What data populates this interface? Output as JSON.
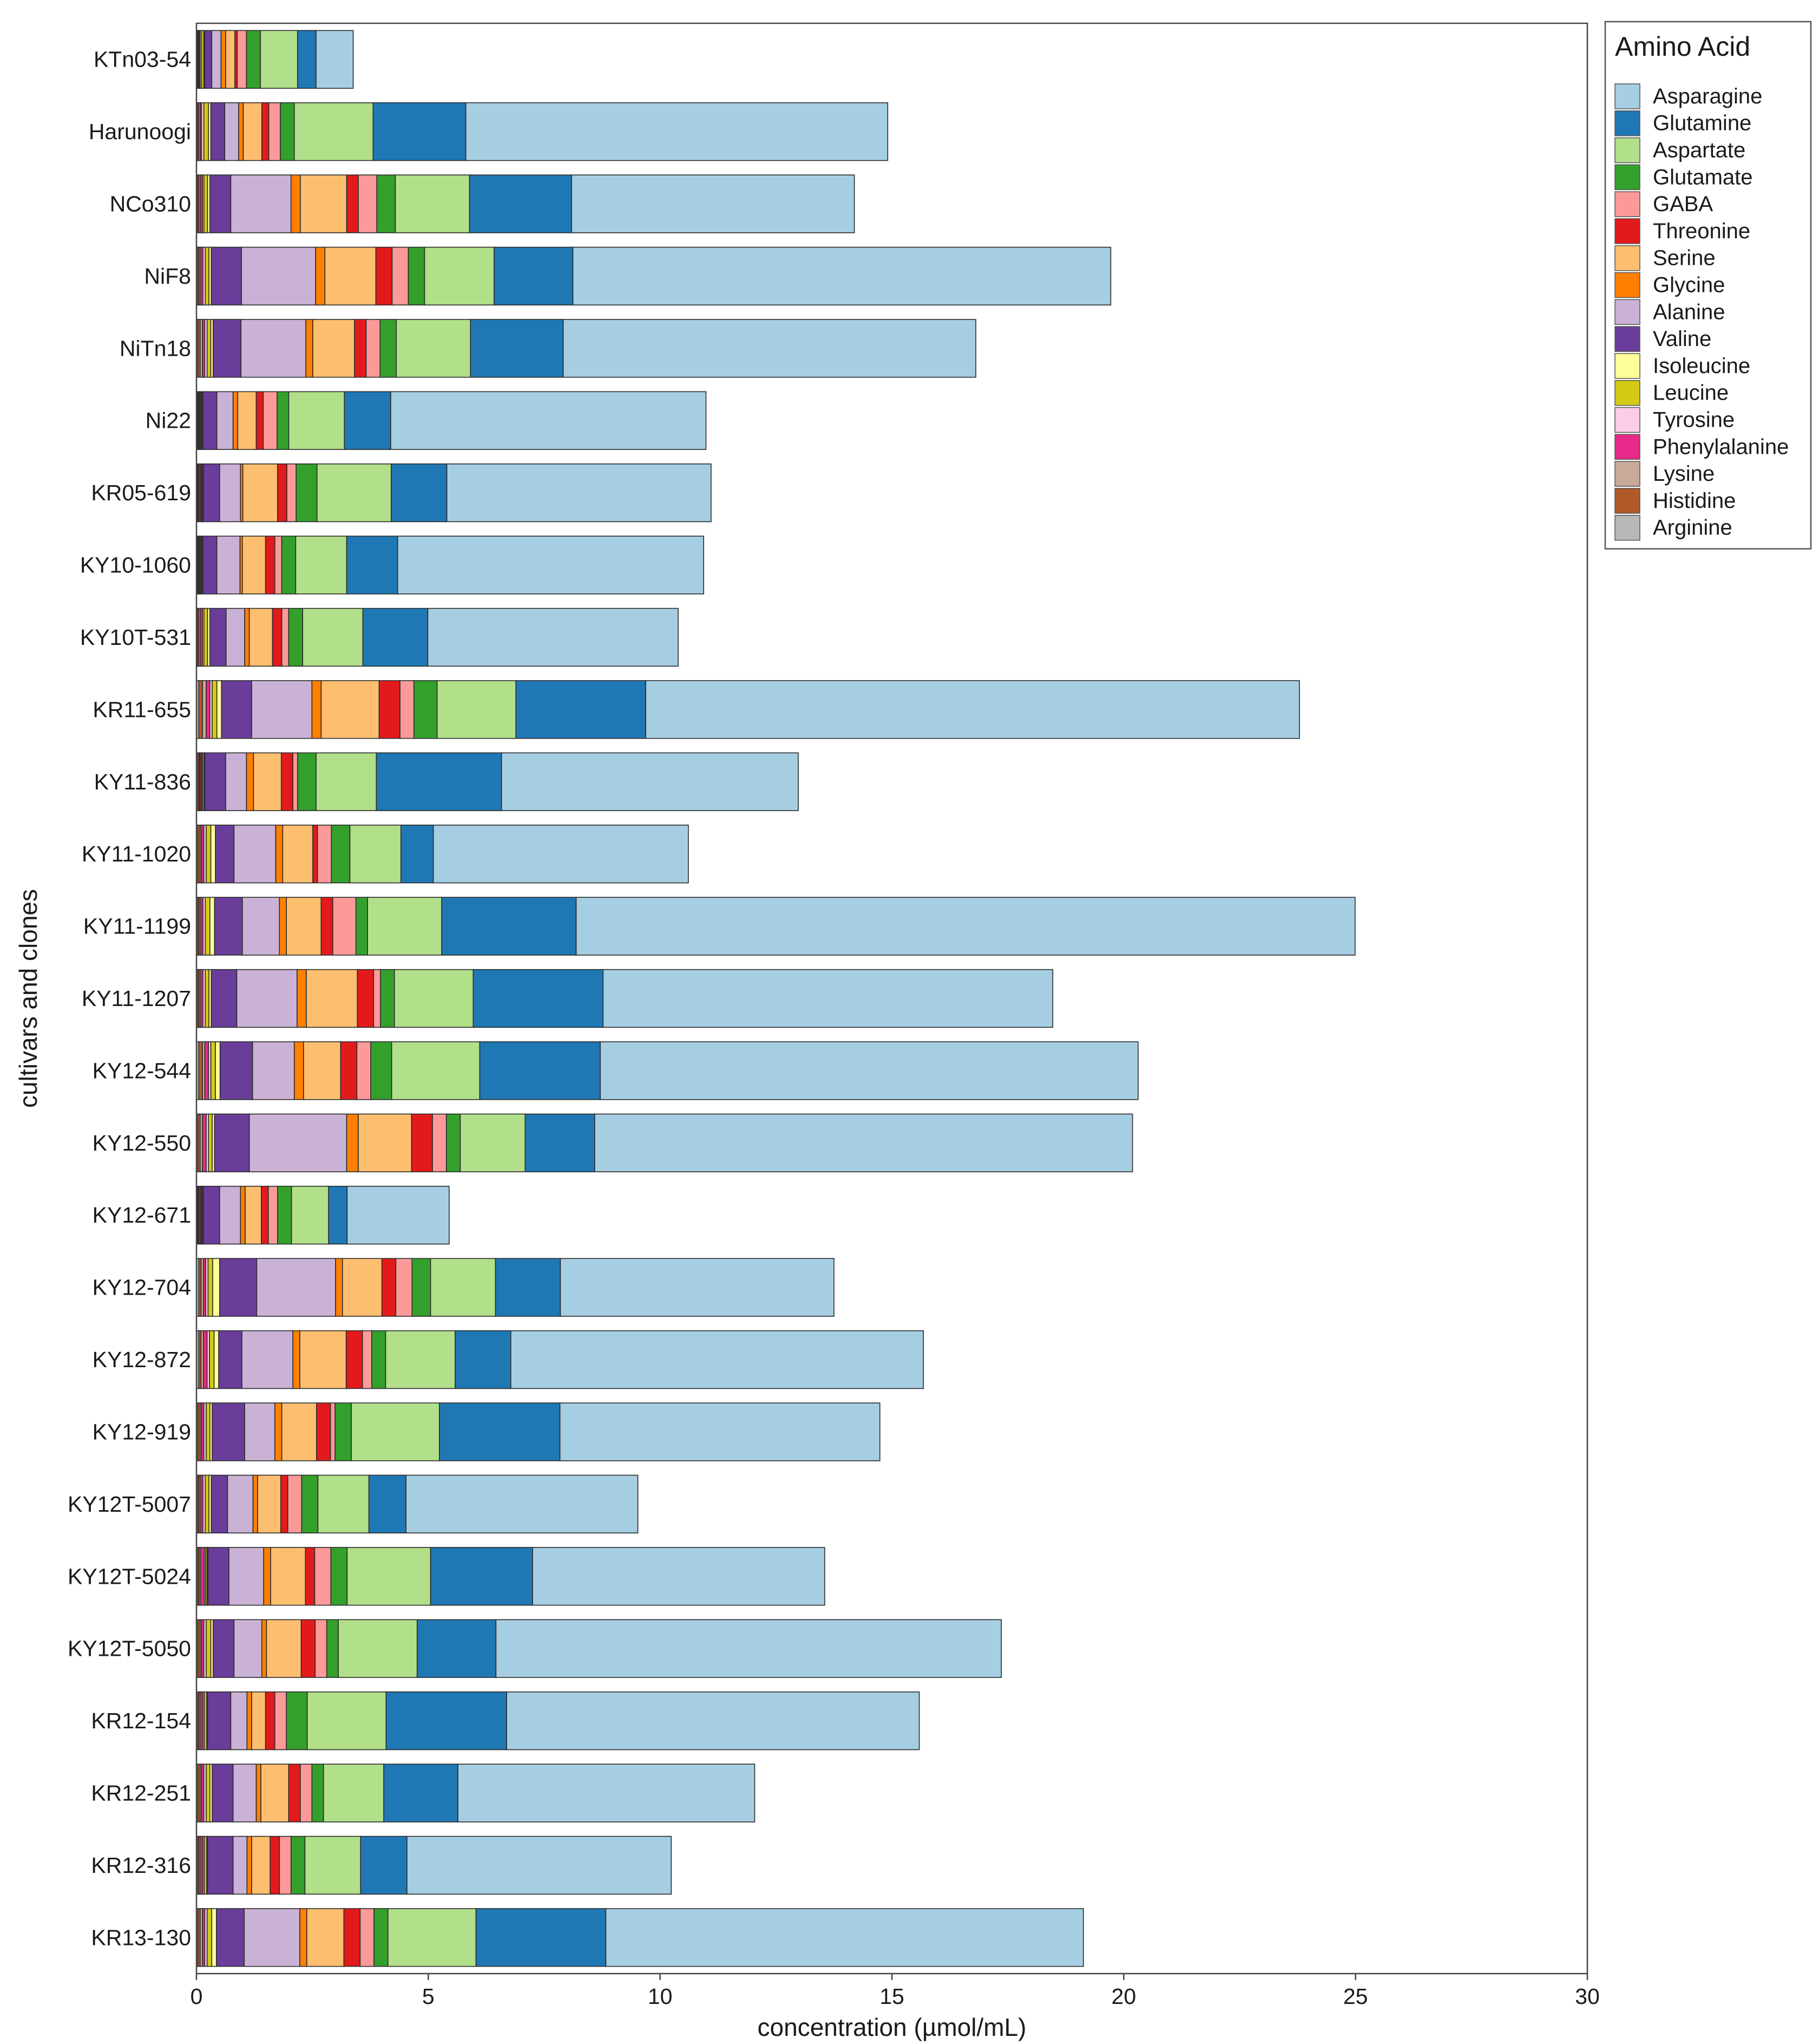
{
  "chart_data": {
    "type": "bar",
    "orientation": "horizontal",
    "stacked": true,
    "xlabel": "concentration (µmol/mL)",
    "ylabel": "cultivars and clones",
    "xlim": [
      0,
      30
    ],
    "xticks": [
      0,
      5,
      10,
      15,
      20,
      25,
      30
    ],
    "legend": {
      "title": "Amino Acid",
      "position": "right"
    },
    "categories": [
      "KTn03-54",
      "Harunoogi",
      "NCo310",
      "NiF8",
      "NiTn18",
      "Ni22",
      "KR05-619",
      "KY10-1060",
      "KY10T-531",
      "KR11-655",
      "KY11-836",
      "KY11-1020",
      "KY11-1199",
      "KY11-1207",
      "KY12-544",
      "KY12-550",
      "KY12-671",
      "KY12-704",
      "KY12-872",
      "KY12-919",
      "KY12T-5007",
      "KY12T-5024",
      "KY12T-5050",
      "KR12-154",
      "KR12-251",
      "KR12-316",
      "KR13-130"
    ],
    "stack_order": [
      "Arginine",
      "Histidine",
      "Lysine",
      "Phenylalanine",
      "Tyrosine",
      "Leucine",
      "Isoleucine",
      "Valine",
      "Alanine",
      "Glycine",
      "Serine",
      "Threonine",
      "GABA",
      "Glutamate",
      "Aspartate",
      "Glutamine",
      "Asparagine"
    ],
    "series": [
      {
        "name": "Asparagine",
        "color": "#a6cee3",
        "values": [
          0.8,
          9.1,
          6.1,
          11.6,
          8.9,
          6.8,
          5.7,
          6.6,
          5.4,
          14.1,
          6.4,
          5.5,
          16.8,
          9.7,
          11.6,
          11.6,
          2.2,
          5.9,
          8.9,
          6.9,
          5.0,
          6.3,
          10.9,
          8.9,
          6.4,
          5.7,
          10.3
        ]
      },
      {
        "name": "Glutamine",
        "color": "#1f78b4",
        "values": [
          0.4,
          2.0,
          2.2,
          1.7,
          2.0,
          1.0,
          1.2,
          1.1,
          1.4,
          2.8,
          2.7,
          0.7,
          2.9,
          2.8,
          2.6,
          1.5,
          0.4,
          1.4,
          1.2,
          2.6,
          0.8,
          2.2,
          1.7,
          2.6,
          1.6,
          1.0,
          2.8
        ]
      },
      {
        "name": "Aspartate",
        "color": "#b2df8a",
        "values": [
          0.8,
          1.7,
          1.6,
          1.5,
          1.6,
          1.2,
          1.6,
          1.1,
          1.3,
          1.7,
          1.3,
          1.1,
          1.6,
          1.7,
          1.9,
          1.4,
          0.8,
          1.4,
          1.5,
          1.9,
          1.1,
          1.8,
          1.7,
          1.7,
          1.3,
          1.2,
          1.9
        ]
      },
      {
        "name": "Glutamate",
        "color": "#33a02c",
        "values": [
          0.3,
          0.3,
          0.4,
          0.35,
          0.35,
          0.25,
          0.45,
          0.3,
          0.3,
          0.5,
          0.4,
          0.4,
          0.25,
          0.3,
          0.45,
          0.3,
          0.3,
          0.4,
          0.3,
          0.35,
          0.35,
          0.35,
          0.25,
          0.45,
          0.25,
          0.3,
          0.3
        ]
      },
      {
        "name": "GABA",
        "color": "#fb9a99",
        "values": [
          0.2,
          0.25,
          0.4,
          0.35,
          0.3,
          0.3,
          0.2,
          0.15,
          0.15,
          0.3,
          0.1,
          0.3,
          0.5,
          0.15,
          0.3,
          0.3,
          0.2,
          0.35,
          0.2,
          0.1,
          0.3,
          0.35,
          0.25,
          0.25,
          0.25,
          0.25,
          0.3
        ]
      },
      {
        "name": "Threonine",
        "color": "#e31a1c",
        "values": [
          0.05,
          0.15,
          0.25,
          0.35,
          0.25,
          0.15,
          0.2,
          0.2,
          0.2,
          0.45,
          0.25,
          0.1,
          0.25,
          0.35,
          0.35,
          0.45,
          0.15,
          0.3,
          0.35,
          0.3,
          0.15,
          0.2,
          0.3,
          0.2,
          0.25,
          0.2,
          0.35
        ]
      },
      {
        "name": "Serine",
        "color": "#fdbf6f",
        "values": [
          0.2,
          0.4,
          1.0,
          1.1,
          0.9,
          0.4,
          0.75,
          0.5,
          0.5,
          1.25,
          0.6,
          0.65,
          0.75,
          1.1,
          0.8,
          1.15,
          0.35,
          0.85,
          1.0,
          0.75,
          0.5,
          0.75,
          0.75,
          0.3,
          0.6,
          0.4,
          0.8
        ]
      },
      {
        "name": "Glycine",
        "color": "#ff7f00",
        "values": [
          0.1,
          0.1,
          0.2,
          0.2,
          0.15,
          0.1,
          0.05,
          0.05,
          0.1,
          0.2,
          0.15,
          0.15,
          0.15,
          0.2,
          0.2,
          0.25,
          0.1,
          0.15,
          0.15,
          0.15,
          0.1,
          0.15,
          0.1,
          0.1,
          0.1,
          0.1,
          0.15
        ]
      },
      {
        "name": "Alanine",
        "color": "#cab2d6",
        "values": [
          0.2,
          0.3,
          1.3,
          1.6,
          1.4,
          0.35,
          0.45,
          0.5,
          0.4,
          1.3,
          0.45,
          0.9,
          0.8,
          1.3,
          0.9,
          2.1,
          0.45,
          1.7,
          1.1,
          0.65,
          0.55,
          0.75,
          0.6,
          0.35,
          0.5,
          0.3,
          1.2
        ]
      },
      {
        "name": "Valine",
        "color": "#6a3d9a",
        "values": [
          0.15,
          0.3,
          0.45,
          0.65,
          0.6,
          0.3,
          0.35,
          0.3,
          0.35,
          0.65,
          0.45,
          0.4,
          0.6,
          0.55,
          0.7,
          0.75,
          0.35,
          0.8,
          0.5,
          0.7,
          0.35,
          0.45,
          0.45,
          0.5,
          0.45,
          0.55,
          0.6
        ]
      },
      {
        "name": "Isoleucine",
        "color": "#ffff99",
        "values": [
          0.02,
          0.05,
          0.05,
          0.05,
          0.05,
          0.02,
          0.02,
          0.02,
          0.05,
          0.1,
          0.02,
          0.1,
          0.1,
          0.05,
          0.1,
          0.05,
          0.02,
          0.15,
          0.1,
          0.05,
          0.05,
          0.02,
          0.05,
          0.02,
          0.05,
          0.02,
          0.1
        ]
      },
      {
        "name": "Leucine",
        "color": "#d4c914",
        "values": [
          0.05,
          0.1,
          0.08,
          0.08,
          0.08,
          0.02,
          0.02,
          0.02,
          0.08,
          0.1,
          0.03,
          0.1,
          0.1,
          0.08,
          0.1,
          0.08,
          0.02,
          0.1,
          0.1,
          0.08,
          0.08,
          0.03,
          0.1,
          0.05,
          0.08,
          0.05,
          0.1
        ]
      },
      {
        "name": "Tyrosine",
        "color": "#fccde5",
        "values": [
          0.03,
          0.05,
          0.03,
          0.05,
          0.05,
          0.02,
          0.02,
          0.02,
          0.03,
          0.05,
          0.02,
          0.05,
          0.05,
          0.05,
          0.05,
          0.05,
          0.02,
          0.05,
          0.05,
          0.05,
          0.05,
          0.03,
          0.05,
          0.03,
          0.05,
          0.03,
          0.05
        ]
      },
      {
        "name": "Phenylalanine",
        "color": "#e7298a",
        "values": [
          0.02,
          0.03,
          0.05,
          0.05,
          0.05,
          0.02,
          0.03,
          0.02,
          0.05,
          0.08,
          0.03,
          0.05,
          0.05,
          0.05,
          0.08,
          0.08,
          0.03,
          0.05,
          0.08,
          0.05,
          0.05,
          0.08,
          0.05,
          0.05,
          0.05,
          0.05,
          0.05
        ]
      },
      {
        "name": "Lysine",
        "color": "#c9a99a",
        "values": [
          0.02,
          0.03,
          0.03,
          0.03,
          0.05,
          0.02,
          0.02,
          0.02,
          0.03,
          0.08,
          0.02,
          0.03,
          0.03,
          0.03,
          0.05,
          0.05,
          0.02,
          0.05,
          0.05,
          0.03,
          0.03,
          0.03,
          0.03,
          0.03,
          0.03,
          0.03,
          0.05
        ]
      },
      {
        "name": "Histidine",
        "color": "#b15928",
        "values": [
          0.02,
          0.03,
          0.03,
          0.03,
          0.05,
          0.02,
          0.02,
          0.02,
          0.03,
          0.08,
          0.03,
          0.05,
          0.03,
          0.03,
          0.08,
          0.05,
          0.02,
          0.05,
          0.05,
          0.05,
          0.03,
          0.03,
          0.05,
          0.03,
          0.05,
          0.03,
          0.05
        ]
      },
      {
        "name": "Arginine",
        "color": "#b8b8b8",
        "values": [
          0.02,
          0.02,
          0.02,
          0.03,
          0.03,
          0.02,
          0.02,
          0.02,
          0.02,
          0.05,
          0.03,
          0.03,
          0.03,
          0.03,
          0.05,
          0.03,
          0.02,
          0.05,
          0.05,
          0.03,
          0.03,
          0.03,
          0.03,
          0.03,
          0.03,
          0.03,
          0.03
        ]
      }
    ]
  }
}
